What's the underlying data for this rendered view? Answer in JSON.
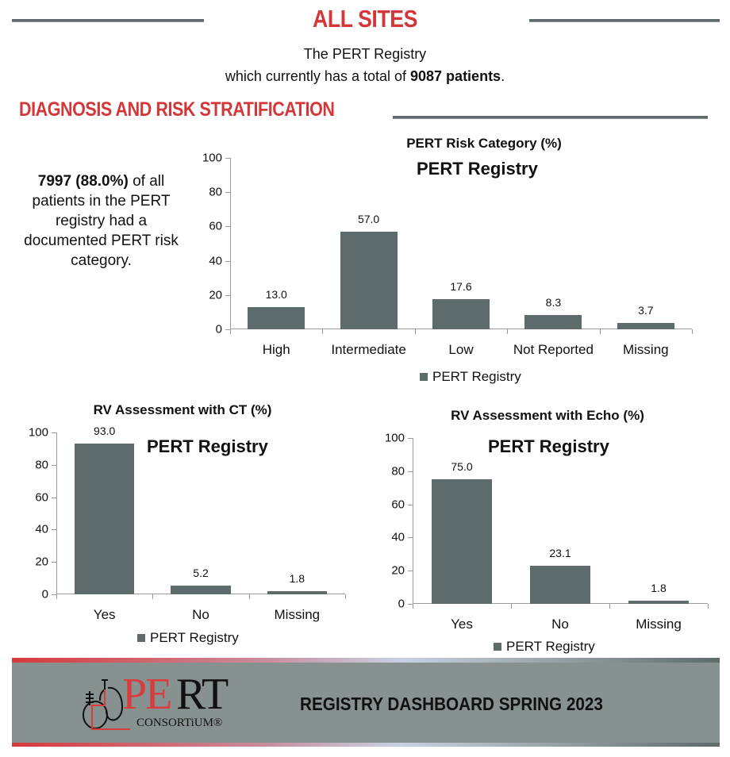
{
  "header": {
    "title": "ALL SITES",
    "line1": "The PERT Registry",
    "line2_prefix": "which currently has a total of ",
    "line2_bold": "9087 patients",
    "line2_suffix": "."
  },
  "section": {
    "title": "DIAGNOSIS AND RISK STRATIFICATION"
  },
  "callout": {
    "bold": "7997 (88.0%)",
    "text": " of all patients in the PERT registry had a documented PERT risk category."
  },
  "colors": {
    "accent_red": "#d4373a",
    "bar": "#5e6b6b",
    "banner_gray": "#879190"
  },
  "chart_data": [
    {
      "type": "bar",
      "title": "PERT Risk Category (%)",
      "subtitle": "PERT Registry",
      "categories": [
        "High",
        "Intermediate",
        "Low",
        "Not Reported",
        "Missing"
      ],
      "values": [
        13.0,
        57.0,
        17.6,
        8.3,
        3.7
      ],
      "value_labels": [
        "13.0",
        "57.0",
        "17.6",
        "8.3",
        "3.7"
      ],
      "series": [
        {
          "name": "PERT Registry",
          "values": [
            13.0,
            57.0,
            17.6,
            8.3,
            3.7
          ]
        }
      ],
      "yticks": [
        "0",
        "20",
        "40",
        "60",
        "80",
        "100"
      ],
      "ylim": [
        0,
        100
      ],
      "xlabel": "",
      "ylabel": "",
      "legend": "PERT Registry",
      "legend_position": "bottom",
      "grid": false
    },
    {
      "type": "bar",
      "title": "RV Assessment with CT (%)",
      "subtitle": "PERT Registry",
      "categories": [
        "Yes",
        "No",
        "Missing"
      ],
      "values": [
        93.0,
        5.2,
        1.8
      ],
      "value_labels": [
        "93.0",
        "5.2",
        "1.8"
      ],
      "series": [
        {
          "name": "PERT Registry",
          "values": [
            93.0,
            5.2,
            1.8
          ]
        }
      ],
      "yticks": [
        "0",
        "20",
        "40",
        "60",
        "80",
        "100"
      ],
      "ylim": [
        0,
        100
      ],
      "xlabel": "",
      "ylabel": "",
      "legend": "PERT Registry",
      "legend_position": "bottom",
      "grid": false
    },
    {
      "type": "bar",
      "title": "RV Assessment with Echo (%)",
      "subtitle": "PERT Registry",
      "categories": [
        "Yes",
        "No",
        "Missing"
      ],
      "values": [
        75.0,
        23.1,
        1.8
      ],
      "value_labels": [
        "75.0",
        "23.1",
        "1.8"
      ],
      "series": [
        {
          "name": "PERT Registry",
          "values": [
            75.0,
            23.1,
            1.8
          ]
        }
      ],
      "yticks": [
        "0",
        "20",
        "40",
        "60",
        "80",
        "100"
      ],
      "ylim": [
        0,
        100
      ],
      "xlabel": "",
      "ylabel": "",
      "legend": "PERT Registry",
      "legend_position": "bottom",
      "grid": false
    }
  ],
  "footer": {
    "logo_pe": "PE",
    "logo_rt": "RT",
    "logo_consortium": "CONSORTiUM®",
    "title": "REGISTRY DASHBOARD SPRING 2023"
  }
}
